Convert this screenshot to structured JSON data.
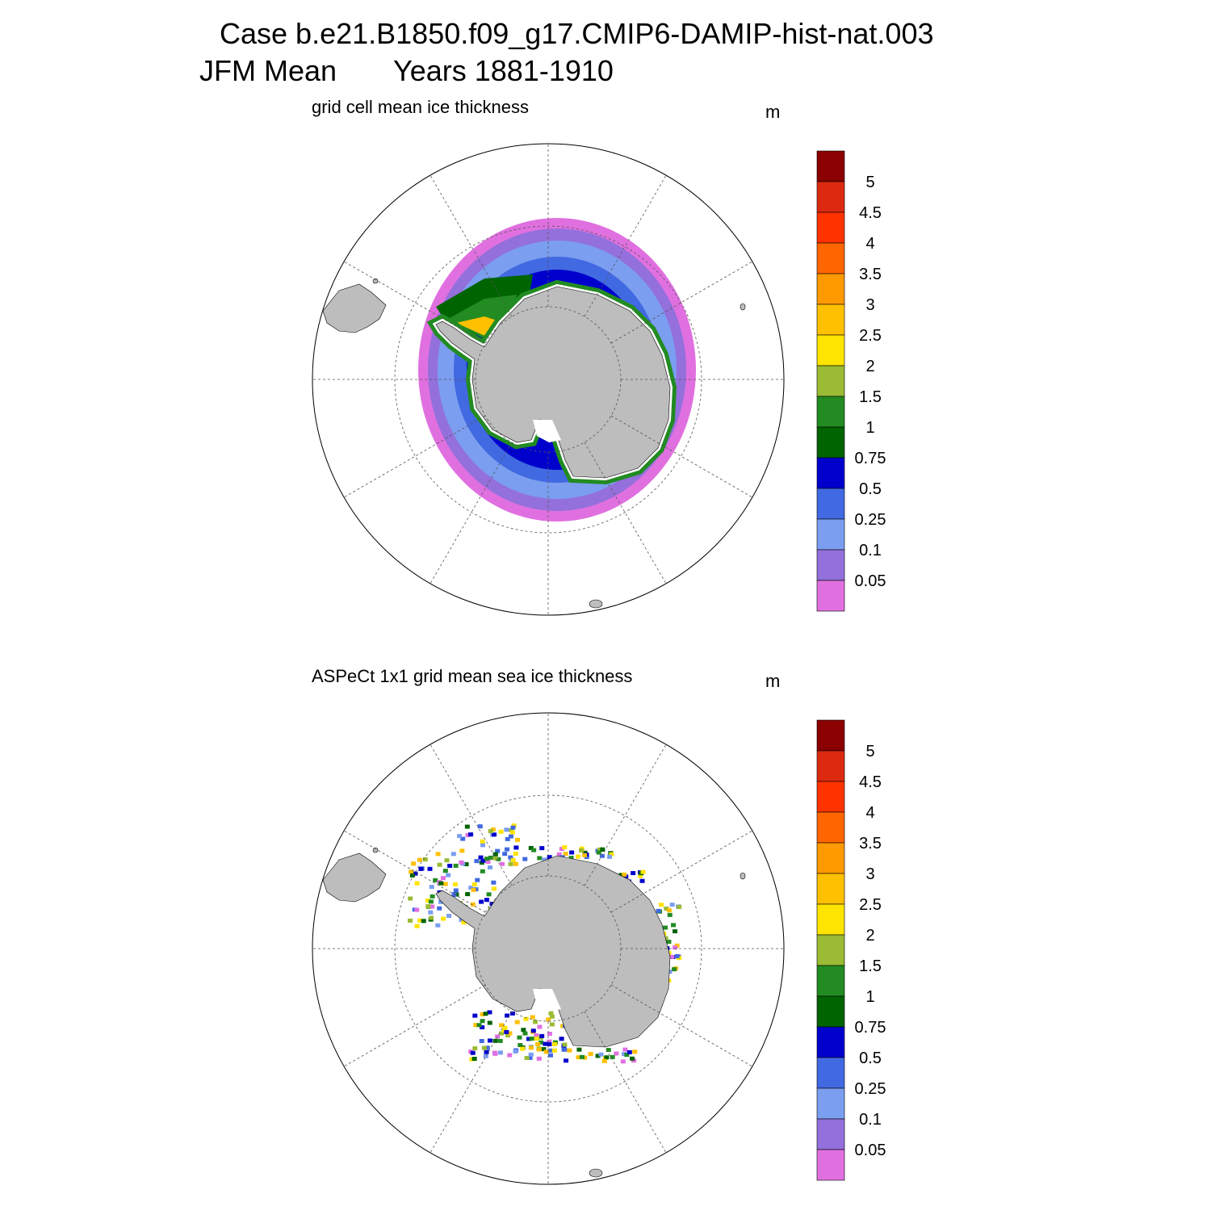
{
  "header": {
    "title": "Case b.e21.B1850.f09_g17.CMIP6-DAMIP-hist-nat.003",
    "subtitle_left": "JFM Mean",
    "subtitle_right": "Years 1881-1910"
  },
  "panels": [
    {
      "title": "grid cell mean ice thickness",
      "units": "m"
    },
    {
      "title": "ASPeCt 1x1 grid mean sea ice thickness",
      "units": "m"
    }
  ],
  "colorbar": {
    "labels": [
      "5",
      "4.5",
      "4",
      "3.5",
      "3",
      "2.5",
      "2",
      "1.5",
      "1",
      "0.75",
      "0.5",
      "0.25",
      "0.1",
      "0.05"
    ],
    "colors": [
      "#8b0000",
      "#dc2a10",
      "#ff3300",
      "#ff6600",
      "#ff9900",
      "#ffc000",
      "#ffe400",
      "#9abb33",
      "#228b22",
      "#006400",
      "#0000cd",
      "#4169e1",
      "#7b9ef0",
      "#9370db",
      "#e070e0"
    ]
  }
}
